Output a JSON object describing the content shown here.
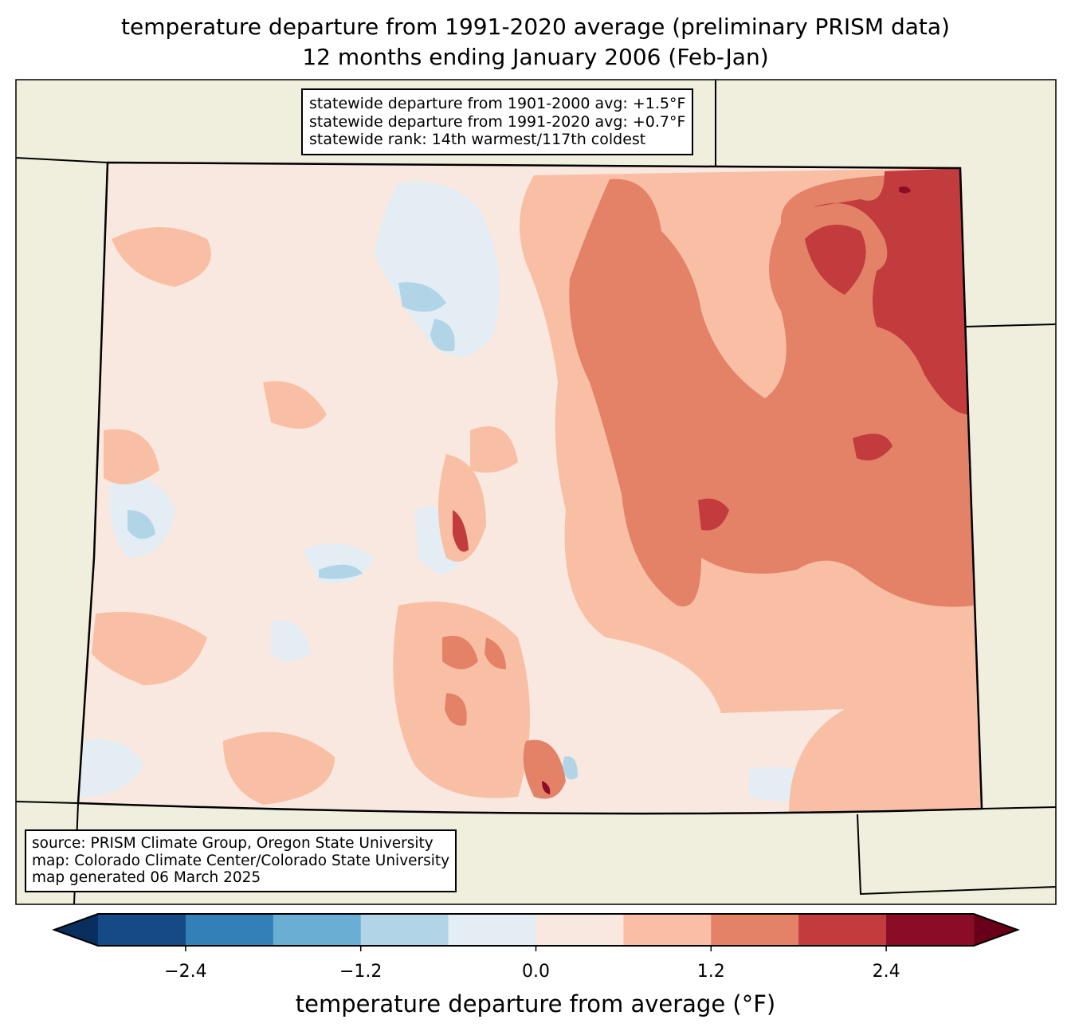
{
  "title": {
    "line1": "temperature departure from 1991-2020 average (preliminary PRISM data)",
    "line2": "12 months ending January 2006 (Feb-Jan)"
  },
  "stats_box": {
    "line1": "statewide departure from 1901-2000 avg: +1.5°F",
    "line2": "statewide departure from 1991-2020 avg: +0.7°F",
    "line3": "statewide rank: 14th warmest/117th coldest"
  },
  "source_box": {
    "line1": "source: PRISM Climate Group, Oregon State University",
    "line2": "map: Colorado Climate Center/Colorado State University",
    "line3": "map generated 06 March 2025"
  },
  "colorbar": {
    "label": "temperature departure from average (°F)",
    "ticks": [
      "−2.4",
      "−1.2",
      "0.0",
      "1.2",
      "2.4"
    ],
    "tick_values": [
      -2.4,
      -1.2,
      0.0,
      1.2,
      2.4
    ],
    "bounds": [
      -3.0,
      -2.4,
      -1.8,
      -1.2,
      -0.6,
      0.0,
      0.6,
      1.2,
      1.8,
      2.4,
      3.0
    ],
    "colors": [
      "#154a86",
      "#337fb8",
      "#6aafd3",
      "#b1d5e7",
      "#e4edf4",
      "#f9e8df",
      "#f9bfa5",
      "#e48268",
      "#c23b3d",
      "#8b0c27"
    ],
    "under_color": "#0a2f5e",
    "over_color": "#690019"
  },
  "map_colors": {
    "land": "#f0eedc",
    "state_border": "#000000",
    "county_border": "#808080"
  }
}
